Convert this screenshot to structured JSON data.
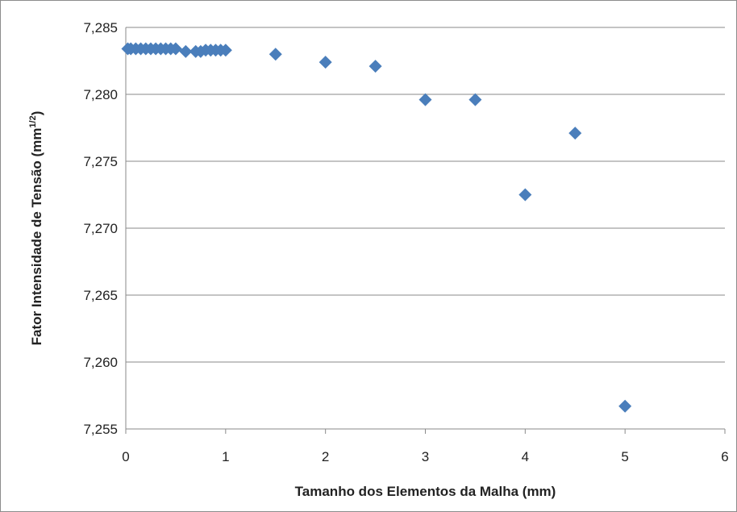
{
  "chart_data": {
    "type": "scatter",
    "xlabel": "Tamanho dos Elementos da Malha (mm)",
    "ylabel": {
      "main": "Fator Intensidade de Tensão (mm",
      "sup": "1/2",
      "close": ")"
    },
    "xlim": [
      0,
      6
    ],
    "ylim": [
      7.255,
      7.285
    ],
    "x_ticks": [
      0,
      1,
      2,
      3,
      4,
      5,
      6
    ],
    "x_tick_labels": [
      "0",
      "1",
      "2",
      "3",
      "4",
      "5",
      "6"
    ],
    "y_ticks": [
      7.255,
      7.26,
      7.265,
      7.27,
      7.275,
      7.28,
      7.285
    ],
    "y_tick_labels": [
      "7,255",
      "7,260",
      "7,265",
      "7,270",
      "7,275",
      "7,280",
      "7,285"
    ],
    "grid": "horizontal",
    "legend": "none",
    "marker": "diamond",
    "marker_color": "#4a7ebb",
    "series": [
      {
        "x": [
          0.02,
          0.05,
          0.1,
          0.15,
          0.2,
          0.25,
          0.3,
          0.35,
          0.4,
          0.45,
          0.5,
          0.6,
          0.7,
          0.75,
          0.8,
          0.85,
          0.9,
          0.95,
          1.0,
          1.5,
          2.0,
          2.5,
          3.0,
          3.5,
          4.0,
          4.5,
          5.0
        ],
        "y": [
          7.2834,
          7.2834,
          7.2834,
          7.2834,
          7.2834,
          7.2834,
          7.2834,
          7.2834,
          7.2834,
          7.2834,
          7.2834,
          7.2832,
          7.2832,
          7.2832,
          7.2833,
          7.2833,
          7.2833,
          7.2833,
          7.2833,
          7.283,
          7.2824,
          7.2821,
          7.2796,
          7.2796,
          7.2725,
          7.2771,
          7.2567
        ]
      }
    ]
  }
}
